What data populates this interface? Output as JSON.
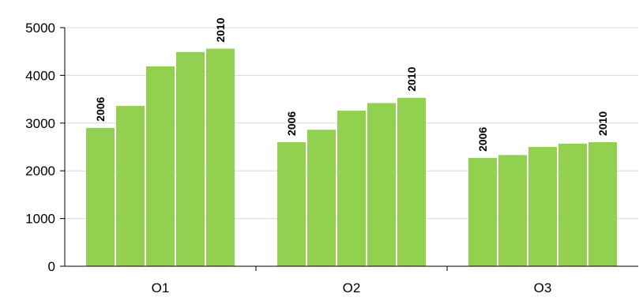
{
  "colors": {
    "bar": "#92d050",
    "grid": "#d9d9d9",
    "axis": "#000000"
  },
  "chart_data": {
    "type": "bar",
    "categories": [
      "O1",
      "O2",
      "O3"
    ],
    "series": [
      {
        "values": [
          2900,
          2600,
          2270
        ]
      },
      {
        "values": [
          3360,
          2860,
          2330
        ]
      },
      {
        "values": [
          4190,
          3260,
          2500
        ]
      },
      {
        "values": [
          4490,
          3420,
          2570
        ]
      },
      {
        "values": [
          4560,
          3530,
          2600
        ]
      }
    ],
    "data_labels": [
      {
        "category": "O1",
        "series_index": 0,
        "text": "2006"
      },
      {
        "category": "O1",
        "series_index": 4,
        "text": "2010"
      },
      {
        "category": "O2",
        "series_index": 0,
        "text": "2006"
      },
      {
        "category": "O2",
        "series_index": 4,
        "text": "2010"
      },
      {
        "category": "O3",
        "series_index": 0,
        "text": "2006"
      },
      {
        "category": "O3",
        "series_index": 4,
        "text": "2010"
      }
    ],
    "y_ticks": [
      "0",
      "1000",
      "2000",
      "3000",
      "4000",
      "5000"
    ],
    "ylim": [
      0,
      5000
    ],
    "grid": true,
    "legend": "none",
    "title": "",
    "xlabel": "",
    "ylabel": ""
  }
}
